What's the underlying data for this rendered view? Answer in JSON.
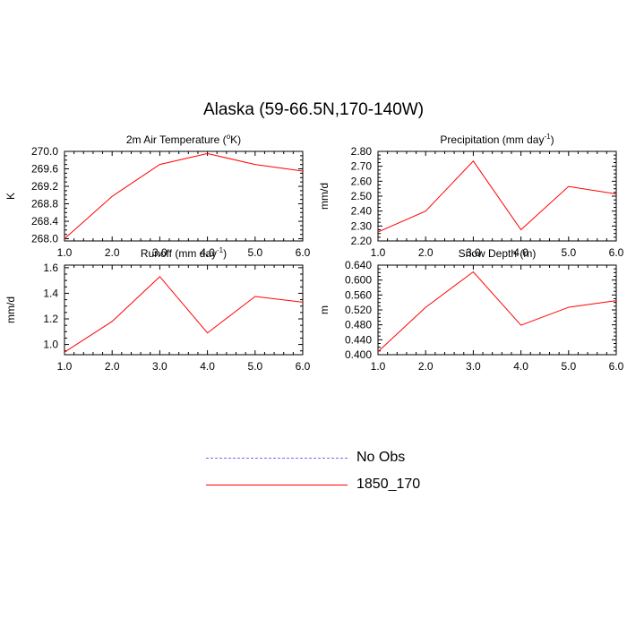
{
  "figure": {
    "title": "Alaska (59-66.5N,170-140W)"
  },
  "legend": [
    {
      "label": "No Obs",
      "style": "dashed",
      "color": "#6b6bff"
    },
    {
      "label": "1850_170",
      "style": "solid",
      "color": "#ff0000"
    }
  ],
  "colors": {
    "series": "#ff0000",
    "axis": "#000000"
  },
  "chart_data": [
    {
      "type": "line",
      "title": "2m Air Temperature (",
      "title_sup": "o",
      "title_end": "K)",
      "xlabel": "",
      "ylabel": "K",
      "x": [
        1,
        2,
        3,
        4,
        5,
        6
      ],
      "xlim": [
        1,
        6
      ],
      "xticks": [
        "1.0",
        "2.0",
        "3.0",
        "4.0",
        "5.0",
        "6.0"
      ],
      "ylim": [
        267.95,
        270.0
      ],
      "yticks": [
        268.0,
        268.4,
        268.8,
        269.2,
        269.6,
        270.0
      ],
      "ytick_labels": [
        "268.0",
        "268.4",
        "268.8",
        "269.2",
        "269.6",
        "270.0"
      ],
      "series": [
        {
          "values": [
            268.0,
            268.97,
            269.7,
            269.95,
            269.7,
            269.55
          ]
        }
      ]
    },
    {
      "type": "line",
      "title": "Precipitation (mm day",
      "title_sup": "-1",
      "title_end": ")",
      "xlabel": "",
      "ylabel": "mm/d",
      "x": [
        1,
        2,
        3,
        4,
        5,
        6
      ],
      "xlim": [
        1,
        6
      ],
      "xticks": [
        "1.0",
        "2.0",
        "3.0",
        "4.0",
        "5.0",
        "6.0"
      ],
      "ylim": [
        2.2,
        2.8
      ],
      "yticks": [
        2.2,
        2.3,
        2.4,
        2.5,
        2.6,
        2.7,
        2.8
      ],
      "ytick_labels": [
        "2.20",
        "2.30",
        "2.40",
        "2.50",
        "2.60",
        "2.70",
        "2.80"
      ],
      "series": [
        {
          "values": [
            2.26,
            2.4,
            2.735,
            2.275,
            2.565,
            2.515
          ]
        }
      ]
    },
    {
      "type": "line",
      "title": "Runoff (mm day",
      "title_sup": "-1",
      "title_end": ")",
      "xlabel": "",
      "ylabel": "mm/d",
      "x": [
        1,
        2,
        3,
        4,
        5,
        6
      ],
      "xlim": [
        1,
        6
      ],
      "xticks": [
        "1.0",
        "2.0",
        "3.0",
        "4.0",
        "5.0",
        "6.0"
      ],
      "ylim": [
        0.92,
        1.62
      ],
      "yticks": [
        1.0,
        1.2,
        1.4,
        1.6
      ],
      "ytick_labels": [
        "1.0",
        "1.2",
        "1.4",
        "1.6"
      ],
      "series": [
        {
          "values": [
            0.94,
            1.18,
            1.53,
            1.09,
            1.375,
            1.33
          ]
        }
      ]
    },
    {
      "type": "line",
      "title": "Snow Depth (m)",
      "title_sup": "",
      "title_end": "",
      "xlabel": "",
      "ylabel": "m",
      "x": [
        1,
        2,
        3,
        4,
        5,
        6
      ],
      "xlim": [
        1,
        6
      ],
      "xticks": [
        "1.0",
        "2.0",
        "3.0",
        "4.0",
        "5.0",
        "6.0"
      ],
      "ylim": [
        0.4,
        0.64
      ],
      "yticks": [
        0.4,
        0.44,
        0.48,
        0.52,
        0.56,
        0.6,
        0.64
      ],
      "ytick_labels": [
        "0.400",
        "0.440",
        "0.480",
        "0.520",
        "0.560",
        "0.600",
        "0.640"
      ],
      "series": [
        {
          "values": [
            0.408,
            0.527,
            0.622,
            0.479,
            0.527,
            0.545
          ]
        }
      ]
    }
  ]
}
